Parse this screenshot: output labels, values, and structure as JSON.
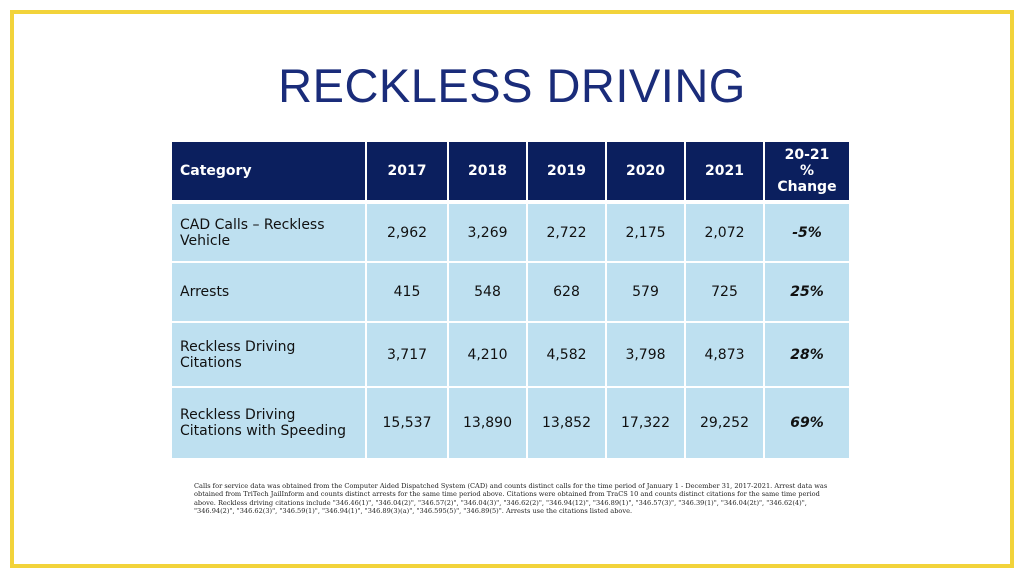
{
  "title": "RECKLESS DRIVING",
  "table": {
    "headers": {
      "category": "Category",
      "y2017": "2017",
      "y2018": "2018",
      "y2019": "2019",
      "y2020": "2020",
      "y2021": "2021",
      "change_line1": "20-21",
      "change_line2": "% Change"
    },
    "rows": [
      {
        "category": "CAD Calls – Reckless Vehicle",
        "v2017": "2,962",
        "v2018": "3,269",
        "v2019": "2,722",
        "v2020": "2,175",
        "v2021": "2,072",
        "change": "-5%"
      },
      {
        "category": "Arrests",
        "v2017": "415",
        "v2018": "548",
        "v2019": "628",
        "v2020": "579",
        "v2021": "725",
        "change": "25%"
      },
      {
        "category": "Reckless Driving Citations",
        "v2017": "3,717",
        "v2018": "4,210",
        "v2019": "4,582",
        "v2020": "3,798",
        "v2021": "4,873",
        "change": "28%"
      },
      {
        "category": "Reckless Driving Citations with Speeding",
        "v2017": "15,537",
        "v2018": "13,890",
        "v2019": "13,852",
        "v2020": "17,322",
        "v2021": "29,252",
        "change": "69%"
      }
    ]
  },
  "footnote": "Calls for service data was obtained from the Computer Aided Dispatched System (CAD) and counts distinct calls for the time period of January 1 - December 31, 2017-2021. Arrest data was obtained from TriTech JailInform and counts distinct arrests for the same time period above. Citations were obtained from TraCS 10 and counts distinct citations for the same time period above. Reckless driving citations include \"346.46(1)\", \"346.04(2)\", \"346.57(2)\", \"346.04(3)\", \"346.62(2)\", \"346.94(12)\", \"346.89(1)\", \"346.57(3)\", \"346.39(1)\", \"346.04(2t)\", \"346.62(4)\", \"346.94(2)\", \"346.62(3)\", \"346.59(1)\", \"346.94(1)\", \"346.89(3)(a)\", \"346.595(5)\", \"346.89(5)\". Arrests use the citations listed above.",
  "colors": {
    "frame": "#F2D33A",
    "title": "#1A2C7A",
    "header_bg": "#0B1F5E",
    "cell_bg": "#BEE0F0"
  }
}
